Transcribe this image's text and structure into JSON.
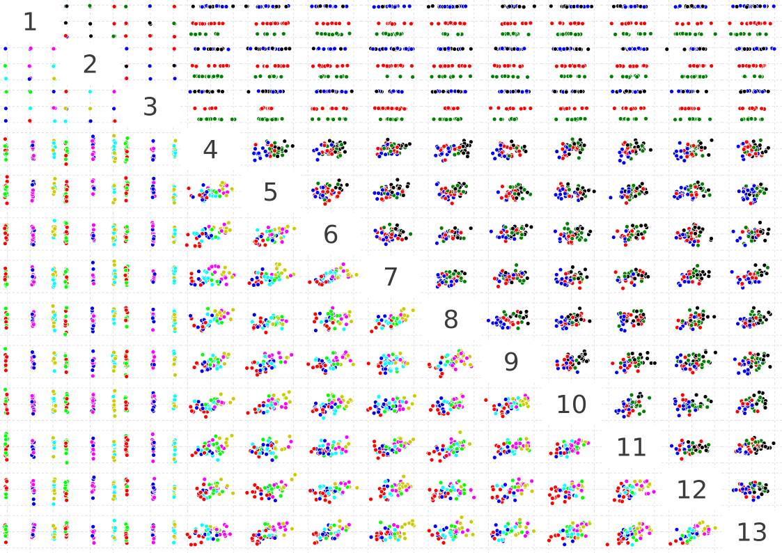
{
  "chart_data": {
    "type": "scatter-matrix",
    "title": "",
    "n_variables": 13,
    "variable_labels": [
      "1",
      "2",
      "3",
      "4",
      "5",
      "6",
      "7",
      "8",
      "9",
      "10",
      "11",
      "12",
      "13"
    ],
    "grid": true,
    "upper_triangle_colors": [
      "#0000ff",
      "#ff0000",
      "#008000",
      "#000000"
    ],
    "lower_triangle_colors": [
      "#ff0000",
      "#0000ff",
      "#00ffff",
      "#00ff00",
      "#ff00ff",
      "#cccc00"
    ],
    "approx_points_per_panel": 45,
    "note": "Pairwise scatter plots of 13 variables; diagonal cells show the variable index. Upper triangle points colored by one class grouping (blue/red/green/black), lower triangle by another (red/blue/cyan/green/magenta/yellow)."
  }
}
